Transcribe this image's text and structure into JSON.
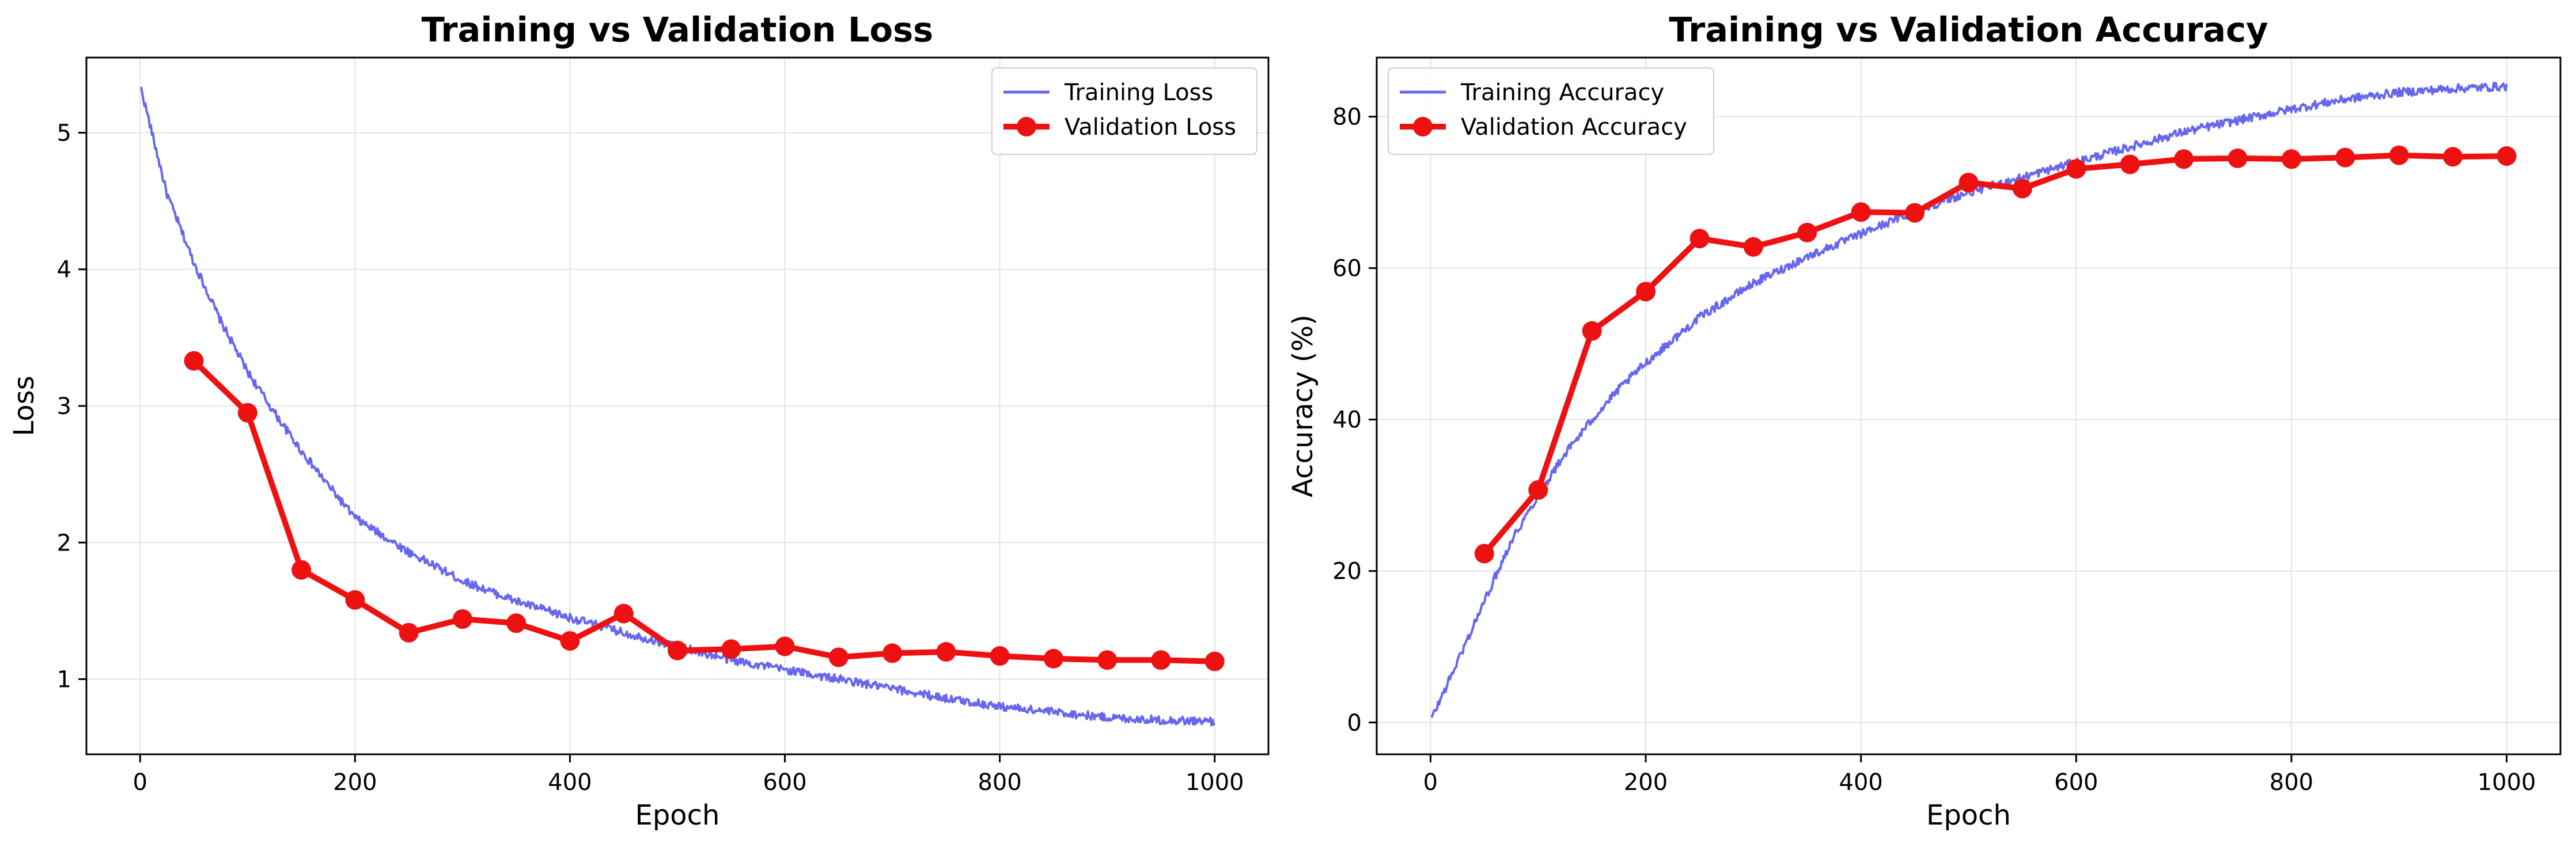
{
  "chart_data": [
    {
      "type": "line",
      "title": "Training vs Validation Loss",
      "xlabel": "Epoch",
      "ylabel": "Loss",
      "xlim": [
        -50,
        1050
      ],
      "ylim": [
        0.45,
        5.55
      ],
      "xticks": [
        0,
        200,
        400,
        600,
        800,
        1000
      ],
      "yticks": [
        1,
        2,
        3,
        4,
        5
      ],
      "grid": true,
      "legend_position": "top-right",
      "series": [
        {
          "name": "Training Loss",
          "style": "line",
          "color": "#6666ee",
          "x": [
            1,
            25,
            50,
            75,
            100,
            125,
            150,
            175,
            200,
            250,
            300,
            350,
            400,
            450,
            500,
            550,
            600,
            650,
            700,
            750,
            800,
            850,
            900,
            950,
            1000
          ],
          "y": [
            5.32,
            4.55,
            4.05,
            3.62,
            3.25,
            2.95,
            2.67,
            2.42,
            2.18,
            1.93,
            1.72,
            1.57,
            1.45,
            1.34,
            1.24,
            1.14,
            1.07,
            1.0,
            0.93,
            0.86,
            0.8,
            0.76,
            0.72,
            0.7,
            0.69
          ]
        },
        {
          "name": "Validation Loss",
          "style": "line-marker",
          "color": "#ee1111",
          "x": [
            50,
            100,
            150,
            200,
            250,
            300,
            350,
            400,
            450,
            500,
            550,
            600,
            650,
            700,
            750,
            800,
            850,
            900,
            950,
            1000
          ],
          "y": [
            3.33,
            2.95,
            1.8,
            1.58,
            1.34,
            1.44,
            1.41,
            1.28,
            1.48,
            1.21,
            1.22,
            1.24,
            1.16,
            1.19,
            1.2,
            1.17,
            1.15,
            1.14,
            1.14,
            1.13
          ]
        }
      ]
    },
    {
      "type": "line",
      "title": "Training vs Validation Accuracy",
      "xlabel": "Epoch",
      "ylabel": "Accuracy (%)",
      "xlim": [
        -50,
        1050
      ],
      "ylim": [
        -4.2,
        87.8
      ],
      "xticks": [
        0,
        200,
        400,
        600,
        800,
        1000
      ],
      "yticks": [
        0,
        20,
        40,
        60,
        80
      ],
      "grid": true,
      "legend_position": "top-left",
      "series": [
        {
          "name": "Training Accuracy",
          "style": "line",
          "color": "#6666ee",
          "x": [
            1,
            25,
            50,
            75,
            100,
            125,
            150,
            175,
            200,
            250,
            300,
            350,
            400,
            450,
            500,
            550,
            600,
            650,
            700,
            750,
            800,
            850,
            900,
            950,
            1000
          ],
          "y": [
            0.5,
            8.0,
            16.0,
            24.0,
            30.0,
            35.5,
            40.0,
            44.0,
            47.5,
            53.5,
            58.0,
            61.5,
            64.5,
            67.5,
            70.0,
            72.0,
            74.0,
            76.0,
            78.0,
            79.5,
            81.0,
            82.3,
            83.2,
            83.7,
            84.0
          ]
        },
        {
          "name": "Validation Accuracy",
          "style": "line-marker",
          "color": "#ee1111",
          "x": [
            50,
            100,
            150,
            200,
            250,
            300,
            350,
            400,
            450,
            500,
            550,
            600,
            650,
            700,
            750,
            800,
            850,
            900,
            950,
            1000
          ],
          "y": [
            22.3,
            30.7,
            51.7,
            56.9,
            63.9,
            62.8,
            64.7,
            67.4,
            67.3,
            71.3,
            70.5,
            73.1,
            73.7,
            74.4,
            74.5,
            74.4,
            74.6,
            74.9,
            74.7,
            74.8
          ]
        }
      ]
    }
  ]
}
